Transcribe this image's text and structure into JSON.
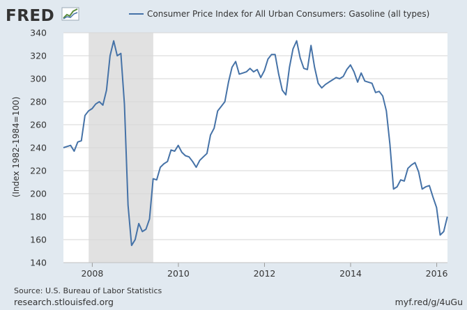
{
  "logo": {
    "text": "FRED"
  },
  "footer": {
    "source": "Source: U.S. Bureau of Labor Statistics",
    "site": "research.stlouisfed.org",
    "shortlink": "myf.red/g/4uGu"
  },
  "colors": {
    "background": "#e1e9f0",
    "plot_background": "#ffffff",
    "series": "#4572a7",
    "recession": "#e1e1e1",
    "grid": "#d6d6d6"
  },
  "chart_data": {
    "type": "line",
    "title": "",
    "legend_label": "Consumer Price Index for All Urban Consumers: Gasoline (all types)",
    "legend_position": "top",
    "xlabel": "",
    "ylabel": "(Index 1982-1984=100)",
    "xlim": [
      2007.33,
      2016.25
    ],
    "ylim": [
      140,
      340
    ],
    "y_ticks": [
      140,
      160,
      180,
      200,
      220,
      240,
      260,
      280,
      300,
      320,
      340
    ],
    "x_ticks": [
      {
        "value": 2008,
        "label": "2008"
      },
      {
        "value": 2010,
        "label": "2010"
      },
      {
        "value": 2012,
        "label": "2012"
      },
      {
        "value": 2014,
        "label": "2014"
      },
      {
        "value": 2016,
        "label": "2016"
      }
    ],
    "grid": "horizontal",
    "recession_shading": [
      {
        "start": 2007.917,
        "end": 2009.417
      }
    ],
    "series": [
      {
        "name": "CPI Gasoline (all types)",
        "start": 2007.33,
        "step": 0.08333,
        "values": [
          240,
          241,
          242,
          237,
          245,
          246,
          268,
          272,
          274,
          278,
          280,
          277,
          290,
          320,
          333,
          320,
          322,
          278,
          190,
          155,
          160,
          174,
          167,
          169,
          178,
          213,
          212,
          223,
          226,
          228,
          238,
          237,
          242,
          236,
          233,
          232,
          228,
          223,
          229,
          232,
          235,
          251,
          257,
          272,
          276,
          280,
          297,
          310,
          315,
          304,
          305,
          306,
          309,
          306,
          308,
          301,
          307,
          317,
          321,
          321,
          304,
          290,
          286,
          310,
          326,
          333,
          318,
          309,
          308,
          329,
          310,
          296,
          292,
          295,
          297,
          299,
          301,
          300,
          302,
          308,
          312,
          306,
          297,
          305,
          298,
          297,
          296,
          288,
          289,
          285,
          272,
          243,
          204,
          206,
          212,
          211,
          222,
          225,
          227,
          219,
          204,
          206,
          207,
          197,
          188,
          164,
          167,
          180
        ]
      }
    ]
  }
}
